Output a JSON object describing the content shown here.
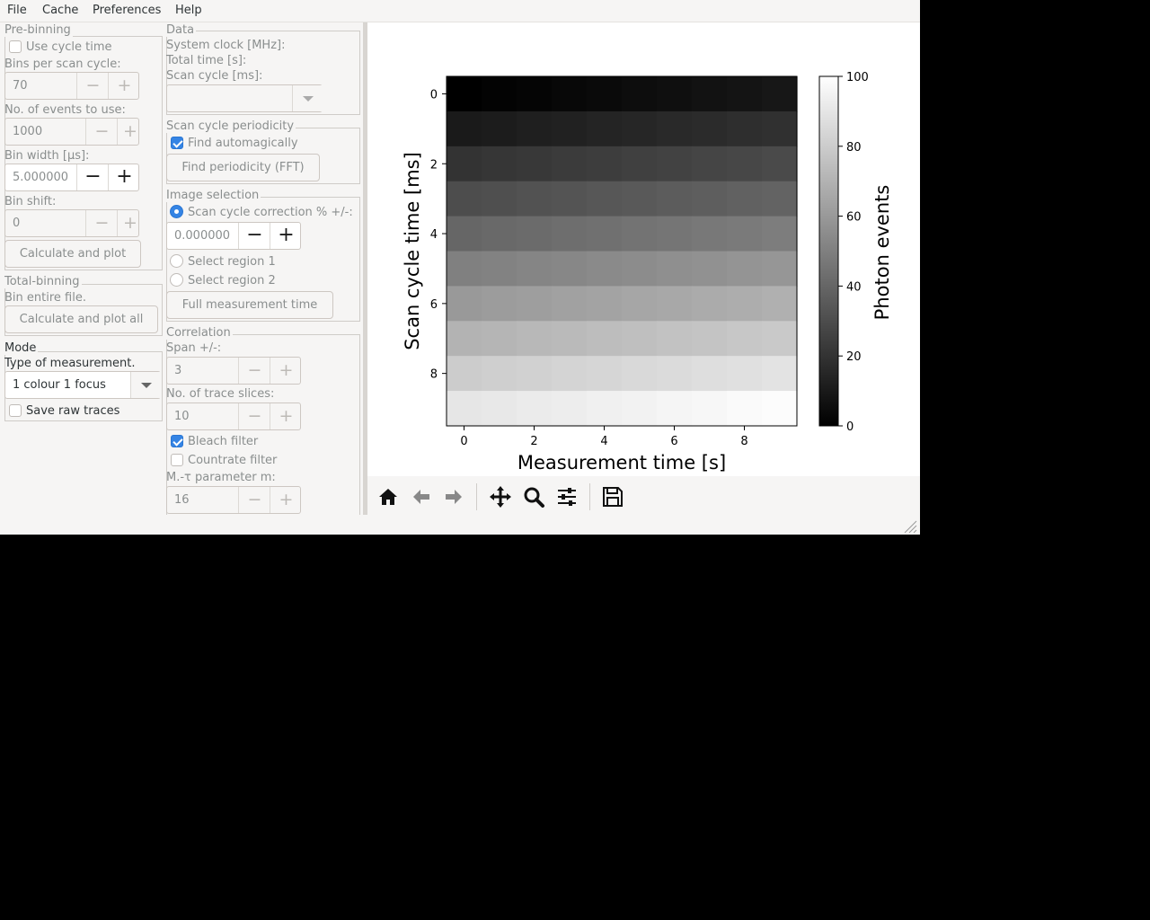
{
  "menu": [
    "File",
    "Cache",
    "Preferences",
    "Help"
  ],
  "prebinning": {
    "title": "Pre-binning",
    "use_cycle_time": "Use cycle time",
    "bins_label": "Bins per scan cycle:",
    "bins_value": "70",
    "events_label": "No. of events to use:",
    "events_value": "1000",
    "binwidth_label": "Bin width [µs]:",
    "binwidth_value": "5.000000",
    "binshift_label": "Bin shift:",
    "binshift_value": "0",
    "calc_button": "Calculate and plot"
  },
  "totalbinning": {
    "title": "Total-binning",
    "desc": "Bin entire file.",
    "calc_all_button": "Calculate and plot all"
  },
  "mode": {
    "title": "Mode",
    "type_label": "Type of measurement.",
    "type_value": "1 colour 1 focus",
    "save_raw": "Save raw traces"
  },
  "data": {
    "title": "Data",
    "clock_label": "System clock [MHz]:",
    "total_label": "Total time [s]:",
    "scan_label": "Scan cycle [ms]:"
  },
  "periodicity": {
    "title": "Scan cycle periodicity",
    "auto_label": "Find automagically",
    "fft_button": "Find periodicity (FFT)"
  },
  "image": {
    "title": "Image selection",
    "correction_label": "Scan cycle correction % +/-:",
    "correction_value": "0.000000",
    "region1": "Select region 1",
    "region2": "Select region 2",
    "full_button": "Full measurement time"
  },
  "correlation": {
    "title": "Correlation",
    "span_label": "Span +/-:",
    "span_value": "3",
    "slices_label": "No. of trace slices:",
    "slices_value": "10",
    "bleach": "Bleach filter",
    "countrate": "Countrate filter",
    "mtau_label": "M.-τ parameter m:",
    "mtau_value": "16"
  },
  "toolbar": {
    "icons": [
      "home-icon",
      "back-arrow-icon",
      "forward-arrow-icon",
      "pan-icon",
      "zoom-icon",
      "configure-subplots-icon",
      "save-icon"
    ]
  },
  "chart_data": {
    "type": "heatmap",
    "xlabel": "Measurement time [s]",
    "ylabel": "Scan cycle time [ms]",
    "colorbar_label": "Photon events",
    "x_ticks": [
      "0",
      "2",
      "4",
      "6",
      "8"
    ],
    "y_ticks": [
      "0",
      "2",
      "4",
      "6",
      "8"
    ],
    "colorbar_ticks": [
      "0",
      "20",
      "40",
      "60",
      "80",
      "100"
    ],
    "colormap": "gray",
    "vmin": 0,
    "vmax": 100,
    "x_range": [
      -0.5,
      9.5
    ],
    "y_range": [
      -0.5,
      9.5
    ],
    "values": [
      [
        0,
        1,
        2,
        3,
        4,
        5,
        6,
        7,
        8,
        9
      ],
      [
        10,
        11,
        12,
        13,
        14,
        15,
        16,
        17,
        18,
        19
      ],
      [
        20,
        21,
        22,
        23,
        24,
        25,
        26,
        27,
        28,
        29
      ],
      [
        30,
        31,
        32,
        33,
        34,
        35,
        36,
        37,
        38,
        39
      ],
      [
        40,
        41,
        42,
        43,
        44,
        45,
        46,
        47,
        48,
        49
      ],
      [
        50,
        51,
        52,
        53,
        54,
        55,
        56,
        57,
        58,
        59
      ],
      [
        60,
        61,
        62,
        63,
        64,
        65,
        66,
        67,
        68,
        69
      ],
      [
        70,
        71,
        72,
        73,
        74,
        75,
        76,
        77,
        78,
        79
      ],
      [
        80,
        81,
        82,
        83,
        84,
        85,
        86,
        87,
        88,
        89
      ],
      [
        90,
        91,
        92,
        93,
        94,
        95,
        96,
        97,
        98,
        99
      ]
    ]
  }
}
